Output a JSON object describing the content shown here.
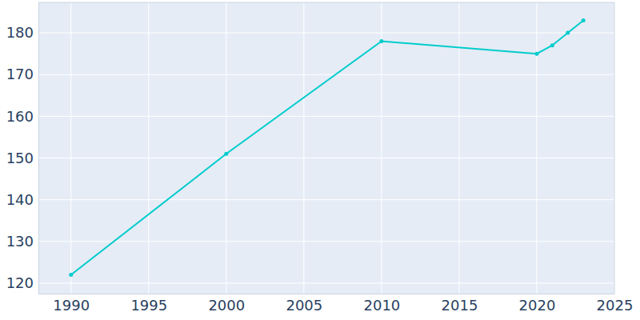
{
  "chart_data": {
    "type": "line",
    "x": [
      1990,
      2000,
      2010,
      2020,
      2021,
      2022,
      2023
    ],
    "values": [
      122,
      151,
      178,
      175,
      177,
      180,
      183
    ],
    "color": "#00cccc",
    "marker": "circle",
    "xlim": [
      1987.9,
      2025
    ],
    "xticks": [
      1990,
      1995,
      2000,
      2005,
      2010,
      2015,
      2020,
      2025
    ],
    "ylim": [
      117.5,
      187.3
    ],
    "yticks": [
      120,
      130,
      140,
      150,
      160,
      170,
      180
    ],
    "grid": true
  }
}
